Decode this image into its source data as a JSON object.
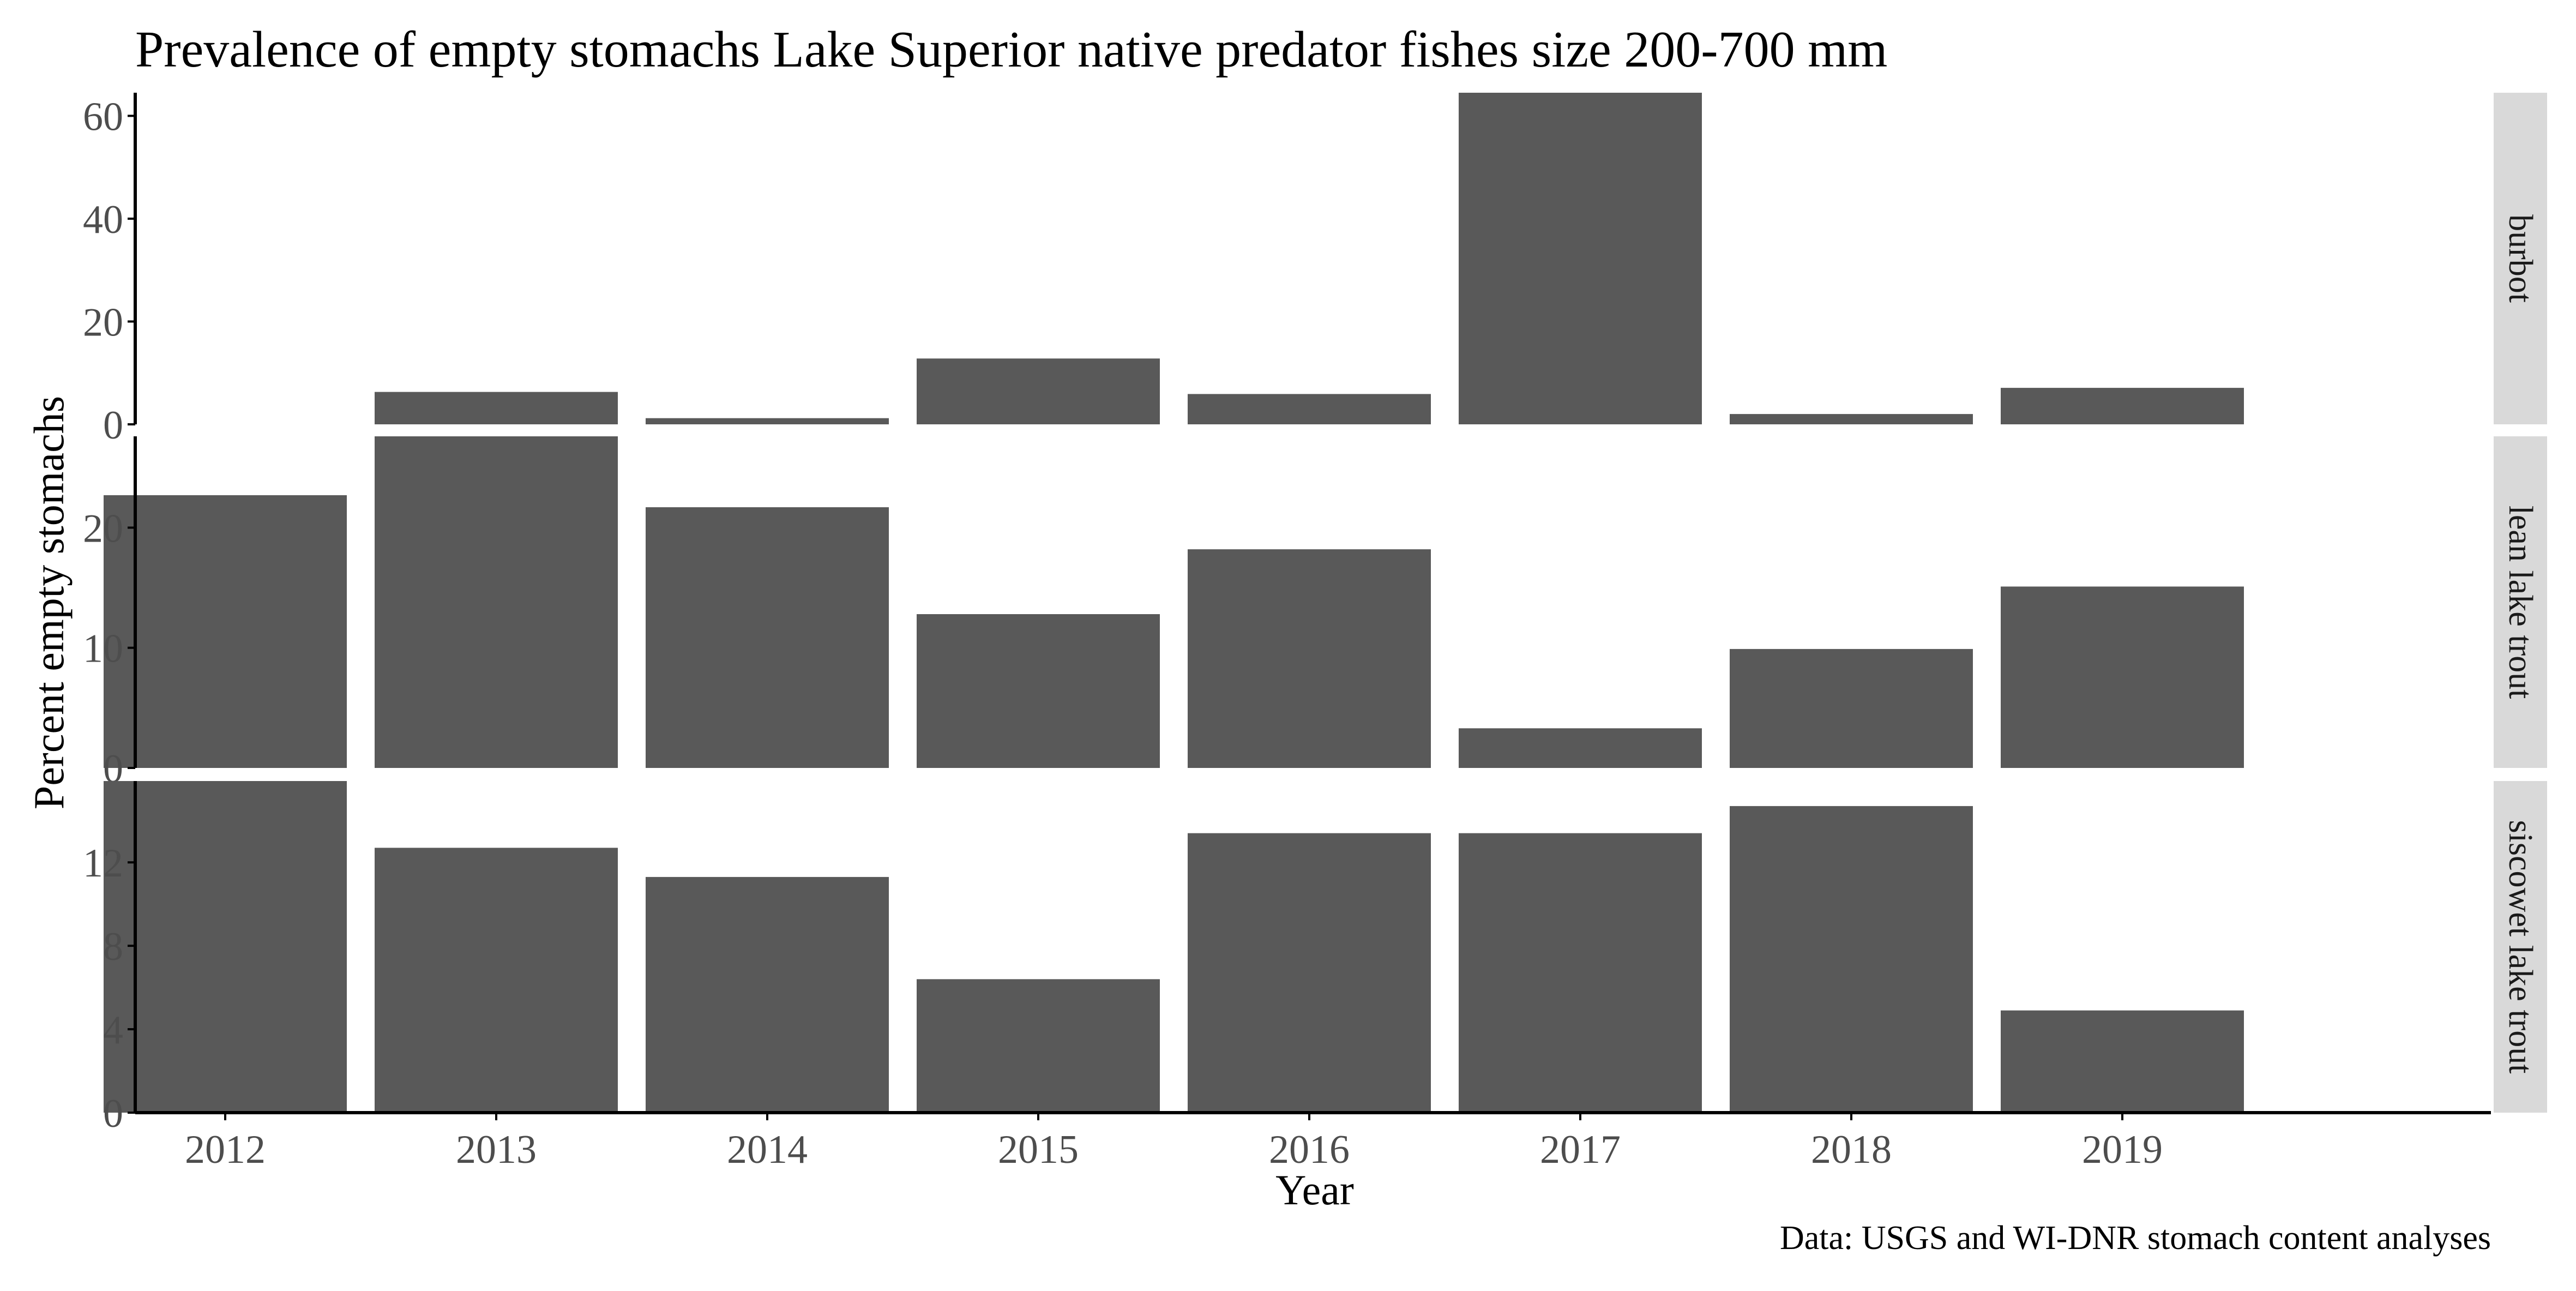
{
  "chart_data": {
    "type": "bar",
    "title": "Prevalence of empty stomachs Lake Superior native predator fishes size 200-700 mm",
    "xlabel": "Year",
    "ylabel": "Percent empty stomachs",
    "caption": "Data: USGS and WI-DNR stomach content analyses",
    "categories": [
      "2012",
      "2013",
      "2014",
      "2015",
      "2016",
      "2017",
      "2018",
      "2019"
    ],
    "bar_color": "#595959",
    "strip_color": "#d9d9d9",
    "axis_color": "#000000",
    "tick_label_color": "#4d4d4d",
    "grid": false,
    "legend": "none",
    "facets": [
      {
        "name": "burbot",
        "values": [
          null,
          6.3,
          1.2,
          12.8,
          5.9,
          64.5,
          2.0,
          7.1
        ],
        "ylim": [
          0,
          64.5
        ],
        "yticks": [
          0,
          20,
          40,
          60
        ]
      },
      {
        "name": "lean lake trout",
        "values": [
          22.7,
          27.6,
          21.7,
          12.8,
          18.2,
          3.3,
          9.9,
          15.1
        ],
        "ylim": [
          0,
          27.6
        ],
        "yticks": [
          0,
          10,
          20
        ]
      },
      {
        "name": "siscowet lake trout",
        "values": [
          15.9,
          12.7,
          11.3,
          6.4,
          13.4,
          13.4,
          14.7,
          4.9
        ],
        "ylim": [
          0,
          15.9
        ],
        "yticks": [
          0,
          4,
          8,
          12
        ]
      }
    ]
  }
}
